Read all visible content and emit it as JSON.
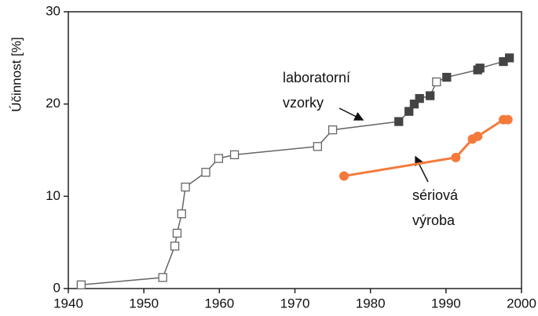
{
  "chart_data": {
    "type": "line",
    "y_label": "Účinnost [%]",
    "xlim": [
      1940,
      2000
    ],
    "xticks": [
      1940,
      1950,
      1960,
      1970,
      1980,
      1990,
      2000
    ],
    "ylim": [
      0,
      30
    ],
    "yticks": [
      0,
      10,
      20,
      30
    ],
    "annotations": [
      {
        "lines": [
          "laboratorní",
          "vzorky"
        ]
      },
      {
        "lines": [
          "sériová",
          "výroba"
        ]
      }
    ],
    "series": [
      {
        "color": "#666666",
        "marker": "square",
        "x": [
          1941.7,
          1952.5,
          1954.1,
          1954.4,
          1955.0,
          1955.5,
          1958.2,
          1959.9,
          1962.0,
          1973.0,
          1975.0,
          1983.75,
          1985.1,
          1985.8,
          1986.5,
          1987.9,
          1988.75,
          1990.1,
          1994.2,
          1994.5,
          1997.6,
          1998.4
        ],
        "values": [
          0.4,
          1.2,
          4.6,
          6.0,
          8.1,
          11.0,
          12.6,
          14.1,
          14.5,
          15.4,
          17.2,
          18.1,
          19.2,
          20.0,
          20.6,
          20.9,
          22.4,
          22.9,
          23.7,
          23.9,
          24.6,
          25.0
        ],
        "point_colors": [
          "#ffffff",
          "#ffffff",
          "#ffffff",
          "#ffffff",
          "#ffffff",
          "#ffffff",
          "#ffffff",
          "#ffffff",
          "#ffffff",
          "#ffffff",
          "#ffffff",
          "#444444",
          "#444444",
          "#444444",
          "#444444",
          "#444444",
          "#ffffff",
          "#444444",
          "#444444",
          "#444444",
          "#444444",
          "#444444"
        ]
      },
      {
        "color": "#f47a3a",
        "marker": "circle",
        "x": [
          1976.5,
          1991.3,
          1993.5,
          1994.2,
          1997.6,
          1998.2
        ],
        "values": [
          12.2,
          14.2,
          16.2,
          16.5,
          18.3,
          18.3
        ]
      }
    ]
  }
}
